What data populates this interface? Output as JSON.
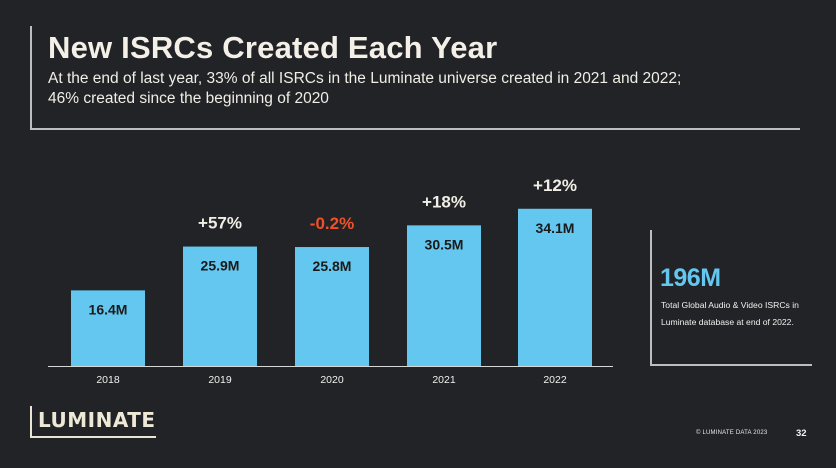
{
  "slide": {
    "title": "New ISRCs Created Each Year",
    "subtitle": "At the end of last year, 33% of all ISRCs in the Luminate universe created in 2021 and 2022; 46% created since the beginning of 2020"
  },
  "chart_data": {
    "type": "bar",
    "title": "",
    "xlabel": "",
    "ylabel": "",
    "unit": "M",
    "categories": [
      "2018",
      "2019",
      "2020",
      "2021",
      "2022"
    ],
    "values": [
      16.4,
      25.9,
      25.8,
      30.5,
      34.1
    ],
    "value_labels": [
      "16.4M",
      "25.9M",
      "25.8M",
      "30.5M",
      "34.1M"
    ],
    "change_labels": [
      "",
      "+57%",
      "-0.2%",
      "+18%",
      "+12%"
    ],
    "colors": {
      "bar": "#63c7ef",
      "positive_change": "#f1eee6",
      "negative_change": "#f0502a"
    },
    "ylim": [
      0,
      36
    ]
  },
  "stat": {
    "value": "196M",
    "description": "Total Global Audio & Video ISRCs in Luminate database at end of 2022."
  },
  "footer": {
    "logo_text": "LUMINATE",
    "copyright": "© LUMINATE DATA 2023",
    "page_number": "32"
  }
}
